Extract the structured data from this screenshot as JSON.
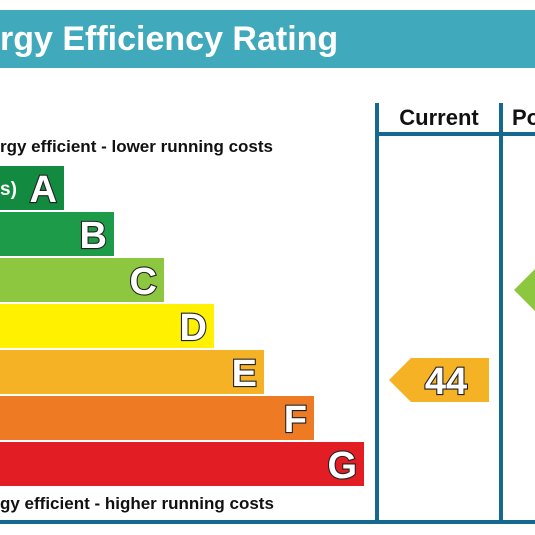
{
  "header": {
    "title": "rgy Efficiency Rating"
  },
  "columns": [
    "Current",
    "Po"
  ],
  "top_note": "rgy efficient - ",
  "top_note_b": "l",
  "top_note_c": "ower running costs",
  "bottom_note": "gy efficient - higher running costs",
  "bands": [
    {
      "prefix": "s)",
      "letter": "A",
      "color": "#128a3f"
    },
    {
      "letter": "B",
      "color": "#1d9b48"
    },
    {
      "letter": "C",
      "color": "#8dc63f"
    },
    {
      "letter": "D",
      "color": "#fff100"
    },
    {
      "letter": "E",
      "color": "#f5b225"
    },
    {
      "letter": "F",
      "color": "#ee7a23"
    },
    {
      "letter": "G",
      "color": "#e31d24"
    }
  ],
  "current": {
    "value": 44,
    "color": "#f5b225"
  },
  "potential": {
    "color": "#8dc63f"
  }
}
